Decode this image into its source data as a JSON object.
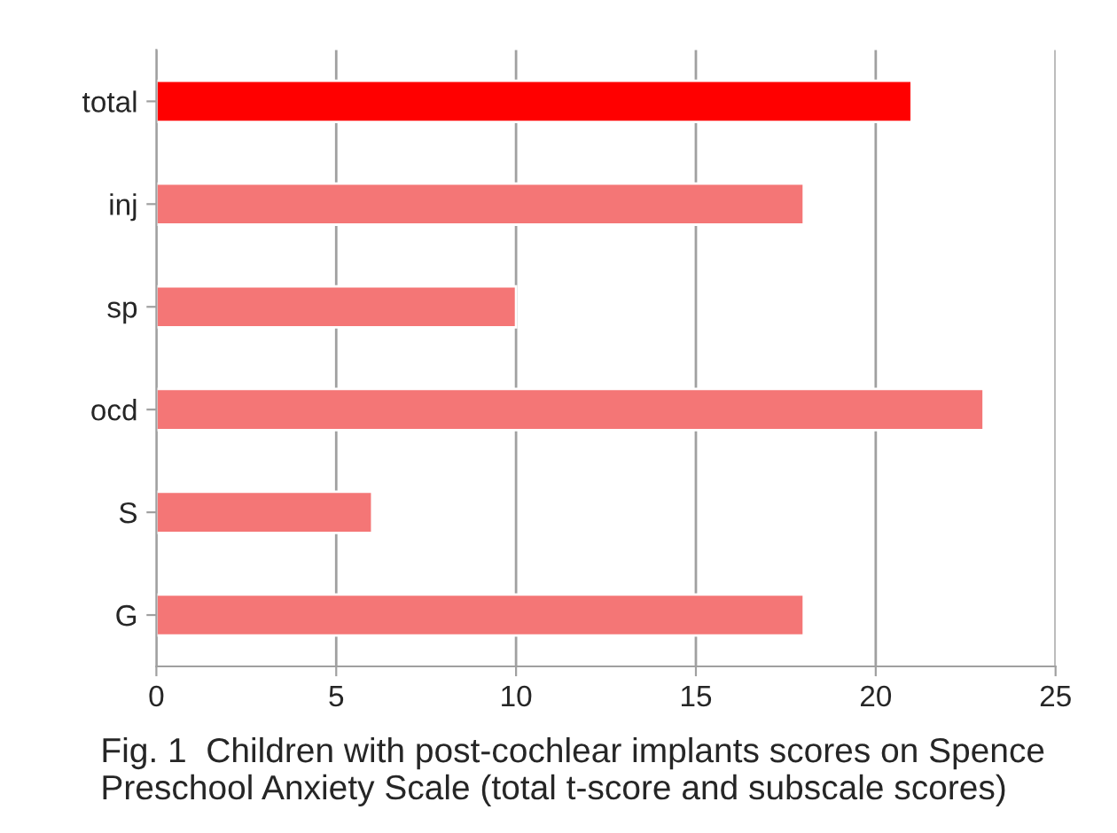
{
  "chart_data": {
    "type": "bar",
    "orientation": "horizontal",
    "categories": [
      "total",
      "inj",
      "sp",
      "ocd",
      "S",
      "G"
    ],
    "values": [
      21,
      18,
      10,
      23,
      6,
      18
    ],
    "colors": [
      "#ff0000",
      "#f47676",
      "#f47676",
      "#f47676",
      "#f47676",
      "#f47676"
    ],
    "xlim": [
      0,
      25
    ],
    "xticks": [
      0,
      5,
      10,
      15,
      20,
      25
    ],
    "grid": "x",
    "annotations": [
      "Fig. 1  Children with post-cochlear implants scores on Spence Preschool Anxiety Scale (total t-score and subscale scores)"
    ]
  }
}
